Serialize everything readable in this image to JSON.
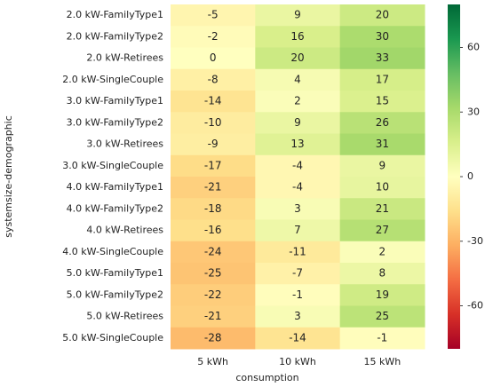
{
  "chart_data": {
    "type": "heatmap",
    "xlabel": "consumption",
    "ylabel": "systemsize-demographic",
    "x": [
      "5 kWh",
      "10 kWh",
      "15 kWh"
    ],
    "categories": [
      "2.0 kW-FamilyType1",
      "2.0 kW-FamilyType2",
      "2.0 kW-Retirees",
      "2.0 kW-SingleCouple",
      "3.0 kW-FamilyType1",
      "3.0 kW-FamilyType2",
      "3.0 kW-Retirees",
      "3.0 kW-SingleCouple",
      "4.0 kW-FamilyType1",
      "4.0 kW-FamilyType2",
      "4.0 kW-Retirees",
      "4.0 kW-SingleCouple",
      "5.0 kW-FamilyType1",
      "5.0 kW-FamilyType2",
      "5.0 kW-Retirees",
      "5.0 kW-SingleCouple"
    ],
    "values": [
      [
        -5,
        9,
        20
      ],
      [
        -2,
        16,
        30
      ],
      [
        0,
        20,
        33
      ],
      [
        -8,
        4,
        17
      ],
      [
        -14,
        2,
        15
      ],
      [
        -10,
        9,
        26
      ],
      [
        -9,
        13,
        31
      ],
      [
        -17,
        -4,
        9
      ],
      [
        -21,
        -4,
        10
      ],
      [
        -18,
        3,
        21
      ],
      [
        -16,
        7,
        27
      ],
      [
        -24,
        -11,
        2
      ],
      [
        -25,
        -7,
        8
      ],
      [
        -22,
        -1,
        19
      ],
      [
        -21,
        3,
        25
      ],
      [
        -28,
        -14,
        -1
      ]
    ],
    "colormap": "RdYlGn",
    "colors": [
      "#a50026",
      "#d73027",
      "#f46d43",
      "#fdae61",
      "#fee08b",
      "#ffffbf",
      "#d9ef8b",
      "#a6d96a",
      "#66bd63",
      "#1a9850",
      "#006837"
    ],
    "clim": [
      -80,
      80
    ],
    "cticks": [
      -60,
      -30,
      0,
      30,
      60
    ]
  }
}
